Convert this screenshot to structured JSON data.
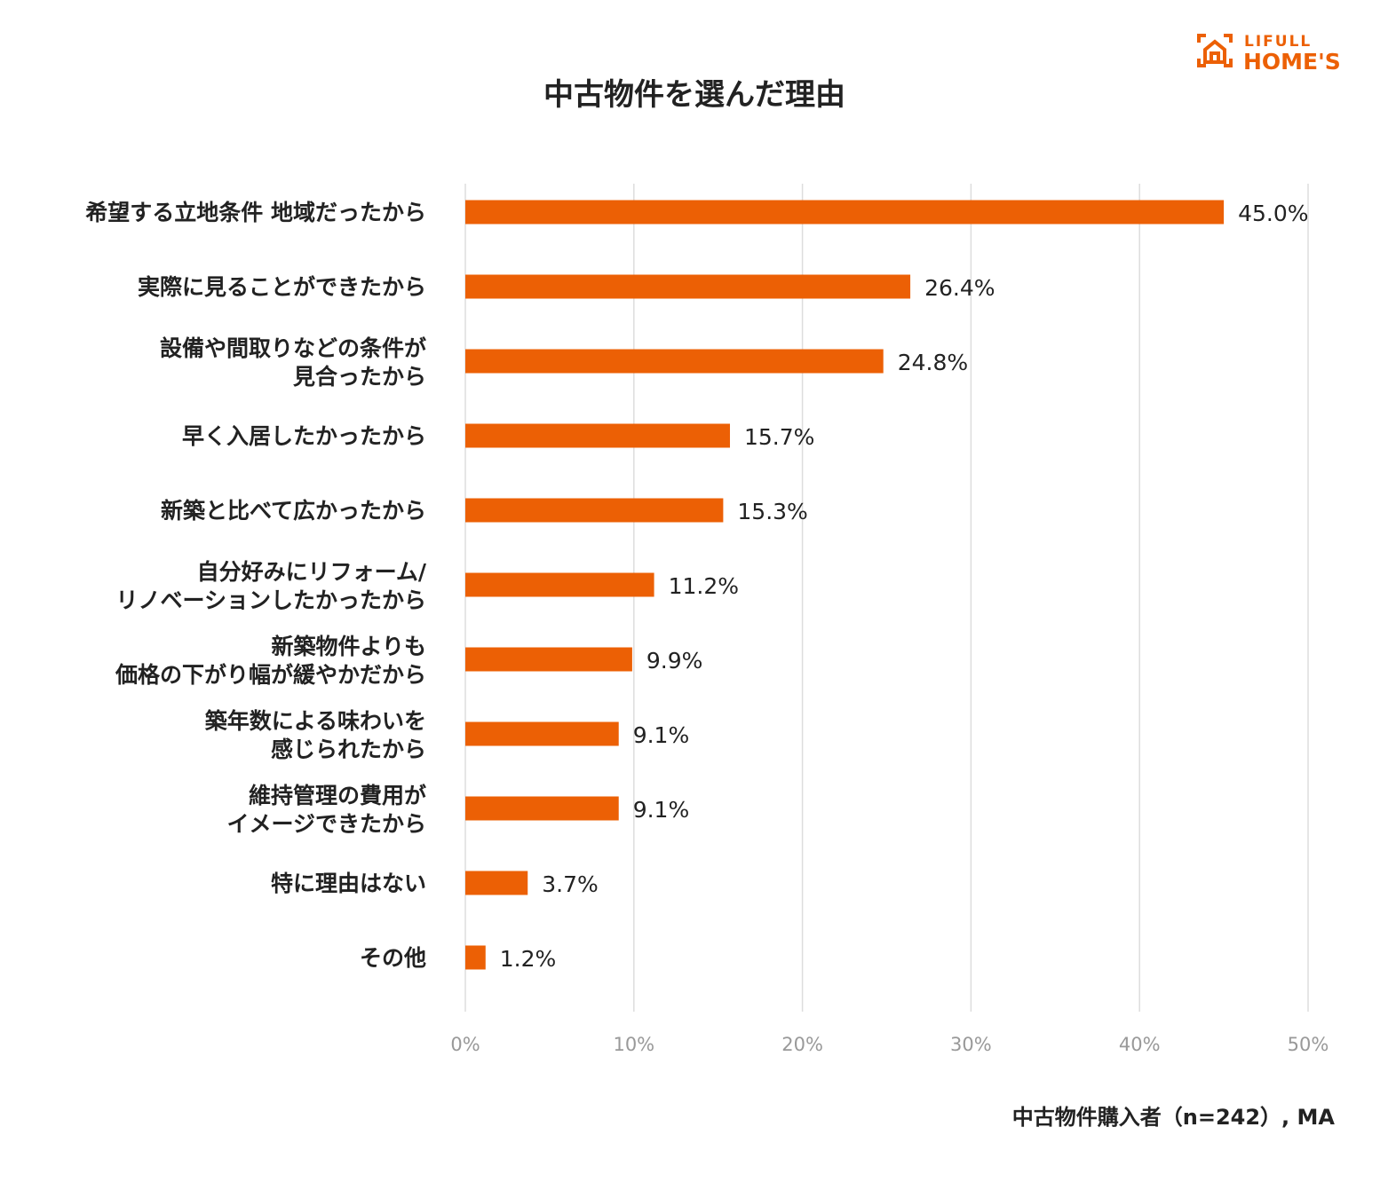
{
  "chart_data": {
    "type": "bar",
    "orientation": "horizontal",
    "title": "中古物件を選んだ理由",
    "categories": [
      [
        "希望する立地条件 地域だったから"
      ],
      [
        "実際に見ることができたから"
      ],
      [
        "設備や間取りなどの条件が",
        "見合ったから"
      ],
      [
        "早く入居したかったから"
      ],
      [
        "新築と比べて広かったから"
      ],
      [
        "自分好みにリフォーム/",
        "リノベーションしたかったから"
      ],
      [
        "新築物件よりも",
        "価格の下がり幅が緩やかだから"
      ],
      [
        "築年数による味わいを",
        "感じられたから"
      ],
      [
        "維持管理の費用が",
        "イメージできたから"
      ],
      [
        "特に理由はない"
      ],
      [
        "その他"
      ]
    ],
    "values": [
      45.0,
      26.4,
      24.8,
      15.7,
      15.3,
      11.2,
      9.9,
      9.1,
      9.1,
      3.7,
      1.2
    ],
    "value_labels": [
      "45.0%",
      "26.4%",
      "24.8%",
      "15.7%",
      "15.3%",
      "11.2%",
      "9.9%",
      "9.1%",
      "9.1%",
      "3.7%",
      "1.2%"
    ],
    "xlim": [
      0,
      50
    ],
    "xticks": [
      0,
      10,
      20,
      30,
      40,
      50
    ],
    "xtick_labels": [
      "0%",
      "10%",
      "20%",
      "30%",
      "40%",
      "50%"
    ],
    "grid": true,
    "bar_color": "#EC6005",
    "grid_color": "#dddddd",
    "note": "中古物件購入者（n=242）, MA"
  },
  "logo": {
    "line1": "LIFULL",
    "line2": "HOME'S",
    "color": "#EC6005"
  }
}
